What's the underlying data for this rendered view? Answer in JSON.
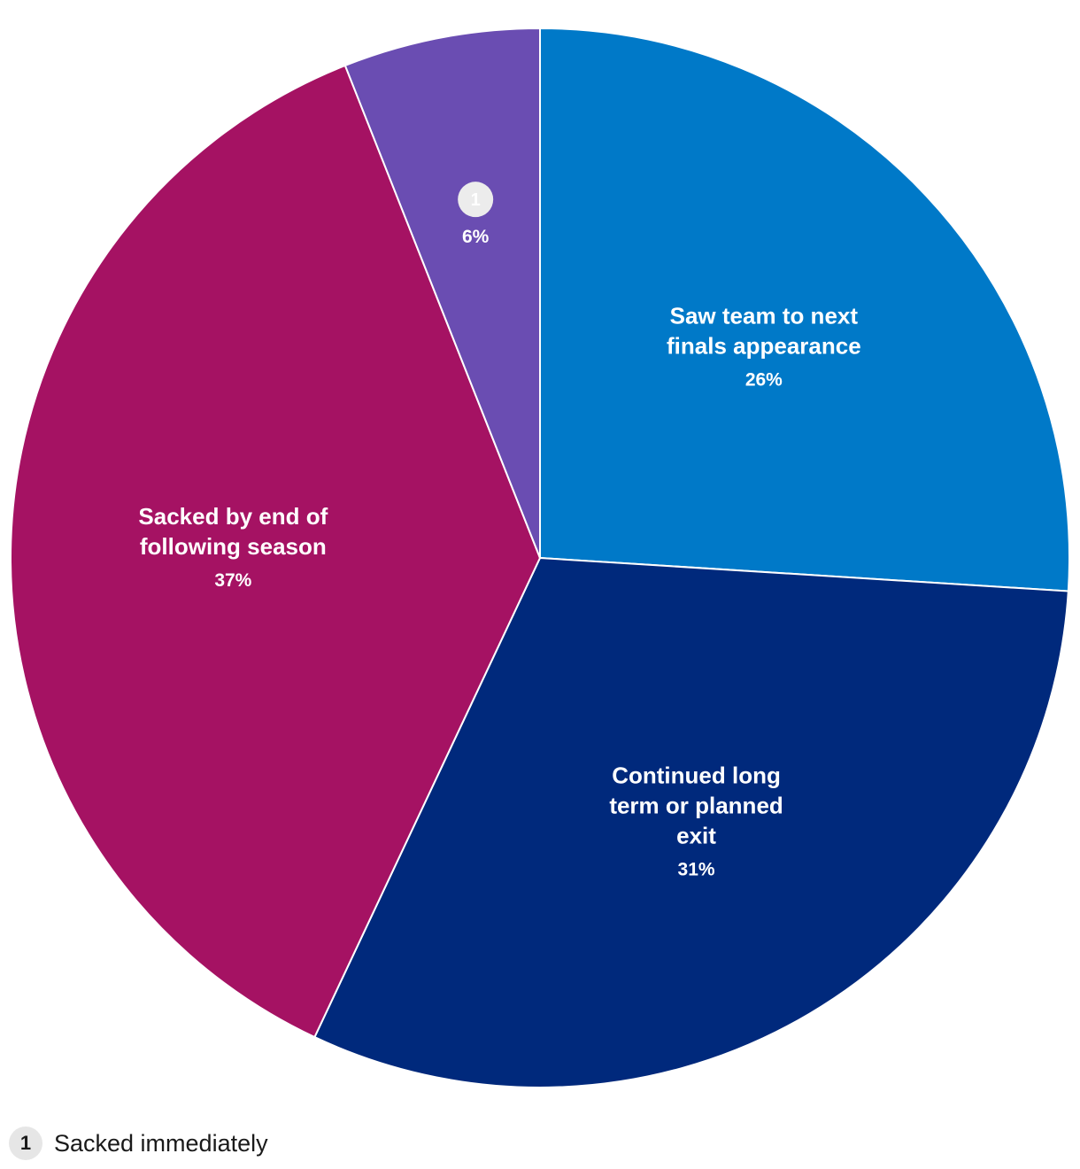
{
  "chart_data": {
    "type": "pie",
    "slices": [
      {
        "label": "Saw team to next finals appearance",
        "display_lines": [
          "Saw team to next",
          "finals appearance"
        ],
        "value": 26,
        "value_label": "26%",
        "color": "#0079c8"
      },
      {
        "label": "Continued long term or planned exit",
        "display_lines": [
          "Continued long",
          "term or planned",
          "exit"
        ],
        "value": 31,
        "value_label": "31%",
        "color": "#00297c"
      },
      {
        "label": "Sacked by end of following season",
        "display_lines": [
          "Sacked by end of",
          "following season"
        ],
        "value": 37,
        "value_label": "37%",
        "color": "#a51263"
      },
      {
        "label": "Sacked immediately",
        "display_lines": [],
        "marker": "1",
        "value": 6,
        "value_label": "6%",
        "color": "#6a4db2"
      }
    ],
    "start_angle": "12 o'clock",
    "direction": "clockwise"
  },
  "footnote": {
    "marker": "1",
    "text": "Sacked immediately"
  }
}
